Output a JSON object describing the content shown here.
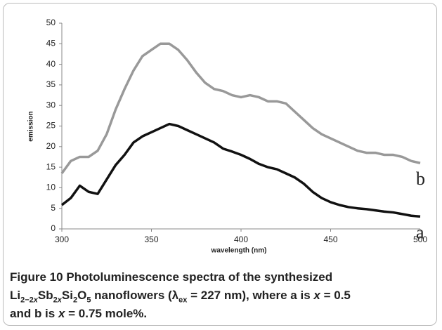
{
  "chart_data": {
    "type": "line",
    "x": [
      300,
      305,
      310,
      315,
      320,
      325,
      330,
      335,
      340,
      345,
      350,
      355,
      360,
      365,
      370,
      375,
      380,
      385,
      390,
      395,
      400,
      405,
      410,
      415,
      420,
      425,
      430,
      435,
      440,
      445,
      450,
      455,
      460,
      465,
      470,
      475,
      480,
      485,
      490,
      495,
      500
    ],
    "series": [
      {
        "name": "a",
        "color": "#111111",
        "values": [
          5.8,
          7.5,
          10.5,
          9,
          8.5,
          12,
          15.5,
          18,
          21,
          22.5,
          23.5,
          24.5,
          25.5,
          25,
          24,
          23,
          22,
          21,
          19.5,
          18.8,
          18,
          17,
          15.8,
          15,
          14.5,
          13.5,
          12.5,
          11,
          9,
          7.5,
          6.5,
          5.8,
          5.3,
          5,
          4.8,
          4.5,
          4.2,
          4,
          3.6,
          3.2,
          3
        ]
      },
      {
        "name": "b",
        "color": "#999999",
        "values": [
          13.5,
          16.5,
          17.5,
          17.5,
          19,
          23,
          29,
          34,
          38.5,
          42,
          43.5,
          45,
          45,
          43.5,
          41,
          38,
          35.5,
          34,
          33.5,
          32.5,
          32,
          32.5,
          32,
          31,
          31,
          30.5,
          28.5,
          26.5,
          24.5,
          23,
          22,
          21,
          20,
          19,
          18.5,
          18.5,
          18,
          18,
          17.5,
          16.5,
          16
        ]
      }
    ],
    "xlabel": "wavelength (nm)",
    "ylabel": "emission",
    "xlim": [
      300,
      500
    ],
    "xticks": [
      300,
      350,
      400,
      450,
      500
    ],
    "ylim": [
      0,
      50
    ],
    "yticks": [
      0,
      5,
      10,
      15,
      20,
      25,
      30,
      35,
      40,
      45,
      50
    ],
    "grid": false
  },
  "caption": {
    "segments": [
      "Figure 10",
      " Photoluminescence spectra of the synthesized",
      "Li",
      "2−2",
      "x",
      "Sb",
      "2",
      "x",
      "Si",
      "2",
      "O",
      "5",
      " nanoflowers (λ",
      "ex",
      " = 227 nm), where a is ",
      "x",
      " = 0.5",
      "and b is ",
      "x",
      " = 0.75 mole%."
    ]
  }
}
